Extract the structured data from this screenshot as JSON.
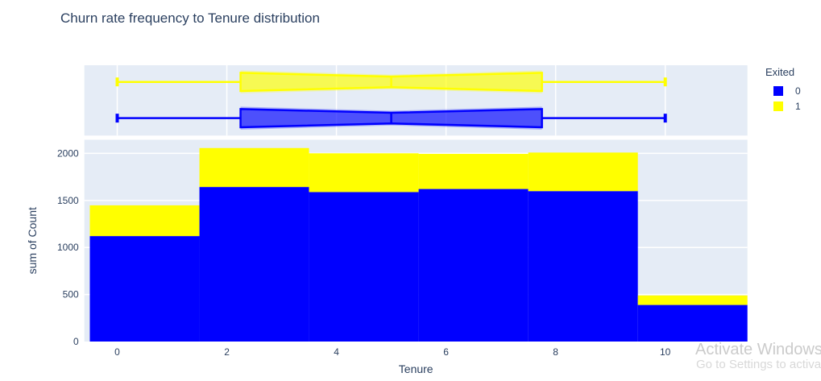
{
  "title": "Churn rate frequency to Tenure distribution",
  "legend": {
    "title": "Exited",
    "items": [
      {
        "label": "0",
        "color": "#0000FF"
      },
      {
        "label": "1",
        "color": "#FFFF00"
      }
    ]
  },
  "watermark": {
    "line1": "Activate Windows",
    "line2": "Go to Settings to activa"
  },
  "colors": {
    "plot_background": "#E5ECF6",
    "gridline": "#FFFFFF",
    "text": "#2a3f5f",
    "exited_0": "#0000FF",
    "exited_1": "#FFFF00"
  },
  "chart_data": {
    "type": "bar",
    "subtype": "stacked-histogram-with-marginal-notched-box",
    "title": "Churn rate frequency to Tenure distribution",
    "xlabel": "Tenure",
    "ylabel": "sum of Count",
    "x_ticks": [
      0,
      2,
      4,
      6,
      8,
      10
    ],
    "y_ticks": [
      0,
      500,
      1000,
      1500,
      2000
    ],
    "x_range": [
      -0.6,
      11.5
    ],
    "y_range": [
      0,
      2145
    ],
    "grid": {
      "main_panel_horizontal": true,
      "marginal_panel_vertical": true
    },
    "legend_position": "top-right",
    "bins": {
      "size": 2,
      "edges": [
        -0.5,
        1.5,
        3.5,
        5.5,
        7.5,
        9.5,
        11.5
      ]
    },
    "bin_totals": [
      1448,
      2057,
      2001,
      1995,
      2009,
      490
    ],
    "series": [
      {
        "name": "0",
        "color": "#0000FF",
        "values": [
          1121,
          1643,
          1589,
          1622,
          1599,
          389
        ]
      },
      {
        "name": "1",
        "color": "#FFFF00",
        "values": [
          327,
          414,
          412,
          373,
          410,
          101
        ]
      }
    ],
    "box_marginal": [
      {
        "name": "1",
        "color": "#FFFF00",
        "row": 0,
        "min": 0,
        "q1": 2.25,
        "median": 5,
        "q3": 7.75,
        "max": 10,
        "notched": true
      },
      {
        "name": "0",
        "color": "#0000FF",
        "row": 1,
        "min": 0,
        "q1": 2.25,
        "median": 5,
        "q3": 7.75,
        "max": 10,
        "notched": true
      }
    ]
  }
}
